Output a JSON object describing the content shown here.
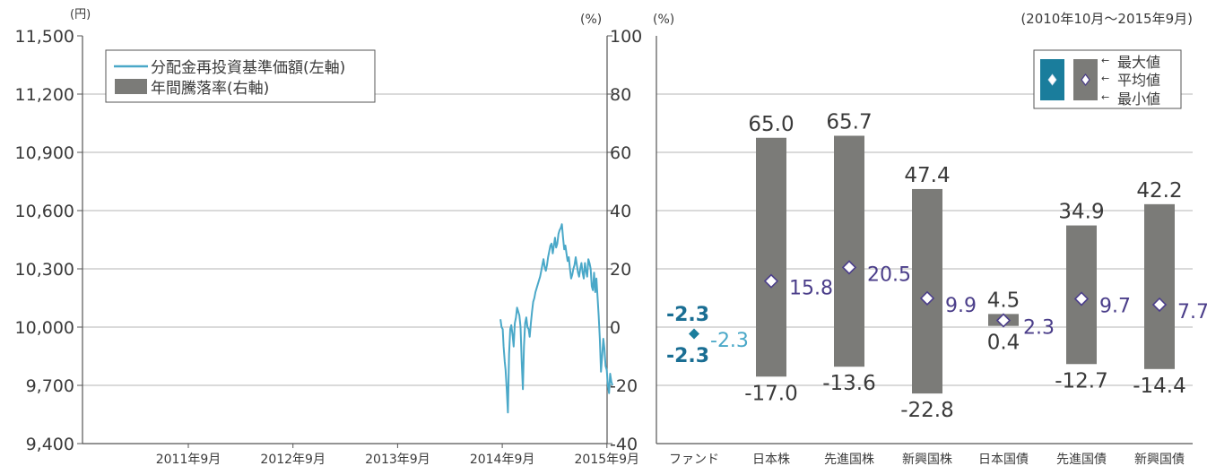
{
  "period_label": "(2010年10月～2015年9月)",
  "colors": {
    "line": "#4aa8c8",
    "bar": "#7b7b78",
    "grid": "#b4b4b4",
    "axis": "#555555",
    "text": "#3a3a3a",
    "fund_marker": "#1a7d9c",
    "fund_label": "#1a6e93",
    "fund_avg_label": "#4aa8c8",
    "avg_marker": "#4b3e8a",
    "avg_label": "#4b3e8a"
  },
  "chart_data": [
    {
      "type": "line",
      "unit_left": "(円)",
      "unit_right": "(%)",
      "x_ticks": [
        "2011年9月",
        "2012年9月",
        "2013年9月",
        "2014年9月",
        "2015年9月"
      ],
      "y_left_ticks": [
        "9,400",
        "9,700",
        "10,000",
        "10,300",
        "10,600",
        "10,900",
        "11,200",
        "11,500"
      ],
      "y_right_ticks": [
        "-40",
        "-20",
        "0",
        "20",
        "40",
        "60",
        "80",
        "100"
      ],
      "ylim_left": [
        9400,
        11500
      ],
      "ylim_right": [
        -40,
        100
      ],
      "grid": true,
      "legend_position": "top-left",
      "legend": [
        "分配金再投資基準価額(左軸)",
        "年間騰落率(右軸)"
      ],
      "series": [
        {
          "name": "分配金再投資基準価額(左軸)",
          "axis": "left",
          "x": [
            "2014-09-01",
            "2014-09-05",
            "2014-09-09",
            "2014-09-12",
            "2014-09-16",
            "2014-09-19",
            "2014-09-23",
            "2014-09-27",
            "2014-10-01",
            "2014-10-05",
            "2014-10-09",
            "2014-10-14",
            "2014-10-17",
            "2014-10-21",
            "2014-10-25",
            "2014-10-29",
            "2014-11-02",
            "2014-11-06",
            "2014-11-10",
            "2014-11-14",
            "2014-11-18",
            "2014-11-22",
            "2014-11-26",
            "2014-11-30",
            "2014-12-04",
            "2014-12-08",
            "2014-12-12",
            "2014-12-16",
            "2014-12-20",
            "2014-12-24",
            "2014-12-28",
            "2015-01-01",
            "2015-01-05",
            "2015-01-09",
            "2015-01-13",
            "2015-01-17",
            "2015-01-21",
            "2015-01-25",
            "2015-01-29",
            "2015-02-02",
            "2015-02-06",
            "2015-02-10",
            "2015-02-14",
            "2015-02-18",
            "2015-02-22",
            "2015-02-26",
            "2015-03-02",
            "2015-03-06",
            "2015-03-10",
            "2015-03-14",
            "2015-03-18",
            "2015-03-22",
            "2015-03-26",
            "2015-03-30",
            "2015-04-03",
            "2015-04-07",
            "2015-04-11",
            "2015-04-15",
            "2015-04-19",
            "2015-04-23",
            "2015-04-27",
            "2015-05-01",
            "2015-05-05",
            "2015-05-09",
            "2015-05-13",
            "2015-05-17",
            "2015-05-21",
            "2015-05-25",
            "2015-05-29",
            "2015-06-02",
            "2015-06-06",
            "2015-06-10",
            "2015-06-14",
            "2015-06-18",
            "2015-06-22",
            "2015-06-26",
            "2015-06-30",
            "2015-07-04",
            "2015-07-08",
            "2015-07-12",
            "2015-07-16",
            "2015-07-20",
            "2015-07-24",
            "2015-07-28",
            "2015-08-01",
            "2015-08-05",
            "2015-08-09",
            "2015-08-13",
            "2015-08-17",
            "2015-08-21",
            "2015-08-25",
            "2015-08-29",
            "2015-09-02",
            "2015-09-06",
            "2015-09-10",
            "2015-09-14",
            "2015-09-18",
            "2015-09-22",
            "2015-09-26"
          ],
          "values": [
            10040,
            10000,
            9990,
            9900,
            9820,
            9780,
            9680,
            9560,
            9860,
            9990,
            10010,
            9950,
            9900,
            10020,
            10050,
            10100,
            10080,
            10060,
            10000,
            9820,
            9680,
            9900,
            10020,
            10050,
            10000,
            9990,
            9950,
            10020,
            10080,
            10130,
            10150,
            10180,
            10200,
            10220,
            10240,
            10260,
            10290,
            10320,
            10350,
            10310,
            10290,
            10320,
            10360,
            10390,
            10420,
            10430,
            10380,
            10420,
            10460,
            10410,
            10430,
            10480,
            10500,
            10510,
            10530,
            10460,
            10400,
            10420,
            10380,
            10340,
            10360,
            10300,
            10250,
            10270,
            10300,
            10320,
            10360,
            10320,
            10280,
            10260,
            10300,
            10330,
            10280,
            10250,
            10330,
            10290,
            10260,
            10350,
            10330,
            10300,
            10210,
            10190,
            10280,
            10180,
            10250,
            10160,
            10060,
            9940,
            9770,
            9850,
            9940,
            9890,
            9800,
            9780,
            9700,
            9660,
            9760,
            9720,
            9700
          ]
        }
      ]
    },
    {
      "type": "bar",
      "subtype": "range",
      "unit": "(%)",
      "categories": [
        "ファンド",
        "日本株",
        "先進国株",
        "新興国株",
        "日本国債",
        "先進国債",
        "新興国債"
      ],
      "max": [
        -2.3,
        65.0,
        65.7,
        47.4,
        4.5,
        34.9,
        42.2
      ],
      "avg": [
        -2.3,
        15.8,
        20.5,
        9.9,
        2.3,
        9.7,
        7.7
      ],
      "min": [
        -2.3,
        -17.0,
        -13.6,
        -22.8,
        0.4,
        -12.7,
        -14.4
      ],
      "max_labels": [
        "-2.3",
        "65.0",
        "65.7",
        "47.4",
        "4.5",
        "34.9",
        "42.2"
      ],
      "avg_labels": [
        "-2.3",
        "15.8",
        "20.5",
        "9.9",
        "2.3",
        "9.7",
        "7.7"
      ],
      "min_labels": [
        "-2.3",
        "-17.0",
        "-13.6",
        "-22.8",
        "0.4",
        "-12.7",
        "-14.4"
      ],
      "ylim": [
        -40,
        100
      ],
      "legend_position": "top-right",
      "legend": [
        "最大値",
        "平均値",
        "最小値"
      ]
    }
  ]
}
